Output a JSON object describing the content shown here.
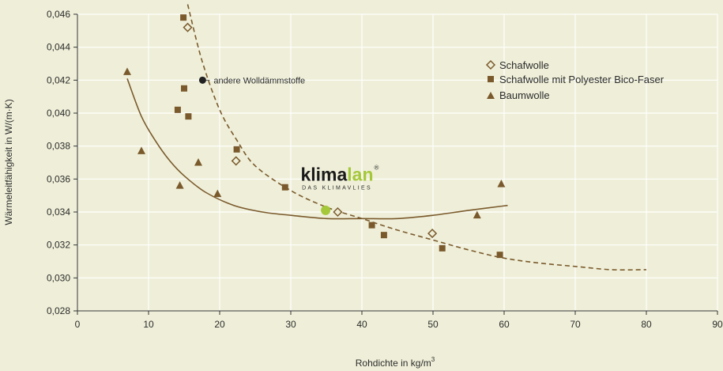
{
  "chart_data": {
    "type": "scatter",
    "title": "",
    "xlabel": "Rohdichte in kg/m",
    "xlabel_superscript": "3",
    "ylabel": "Wärmeleitfähigkeit in W/(m·K)",
    "xlim": [
      0,
      90
    ],
    "ylim": [
      0.028,
      0.046
    ],
    "x_ticks": [
      "0",
      "10",
      "20",
      "30",
      "40",
      "50",
      "60",
      "70",
      "80",
      "90"
    ],
    "y_ticks": [
      "0,028",
      "0,030",
      "0,032",
      "0,034",
      "0,036",
      "0,038",
      "0,040",
      "0,042",
      "0,044",
      "0,046"
    ],
    "grid": true,
    "legend_position": "top-right",
    "series": [
      {
        "name": "Schafwolle",
        "marker": "diamond-open",
        "color": "#7a5a2c",
        "points": [
          [
            15.5,
            0.0452
          ],
          [
            22.3,
            0.0371
          ],
          [
            36.6,
            0.034
          ],
          [
            49.9,
            0.0327
          ]
        ]
      },
      {
        "name": "Schafwolle mit Polyester Bico-Faser",
        "marker": "square",
        "color": "#7a5a2c",
        "points": [
          [
            14.9,
            0.0458
          ],
          [
            15.0,
            0.0415
          ],
          [
            14.1,
            0.0402
          ],
          [
            15.6,
            0.0398
          ],
          [
            22.4,
            0.0378
          ],
          [
            29.2,
            0.0355
          ],
          [
            41.4,
            0.0332
          ],
          [
            43.1,
            0.0326
          ],
          [
            51.3,
            0.0318
          ],
          [
            59.4,
            0.0314
          ]
        ]
      },
      {
        "name": "Baumwolle",
        "marker": "triangle",
        "color": "#7a5a2c",
        "points": [
          [
            7.0,
            0.0425
          ],
          [
            9.0,
            0.0377
          ],
          [
            14.4,
            0.0356
          ],
          [
            17.0,
            0.037
          ],
          [
            19.7,
            0.0351
          ],
          [
            56.2,
            0.0338
          ],
          [
            59.6,
            0.0357
          ]
        ]
      }
    ],
    "trend_lines": [
      {
        "for": "Schafwolle mit Polyester Bico-Faser",
        "style": "dashed",
        "color": "#7a5a2c",
        "points": [
          [
            15.5,
            0.0466
          ],
          [
            17.5,
            0.0432
          ],
          [
            20.0,
            0.0402
          ],
          [
            22.5,
            0.0383
          ],
          [
            25.0,
            0.0368
          ],
          [
            30.0,
            0.0353
          ],
          [
            35.0,
            0.0343
          ],
          [
            40.0,
            0.0336
          ],
          [
            45.0,
            0.0329
          ],
          [
            50.0,
            0.0323
          ],
          [
            55.0,
            0.0317
          ],
          [
            60.0,
            0.0312
          ],
          [
            65.0,
            0.0309
          ],
          [
            70.0,
            0.0307
          ],
          [
            75.0,
            0.0305
          ],
          [
            80.0,
            0.0305
          ]
        ]
      },
      {
        "for": "Baumwolle",
        "style": "solid",
        "color": "#7a5a2c",
        "points": [
          [
            7.0,
            0.0421
          ],
          [
            9.0,
            0.0398
          ],
          [
            11.0,
            0.0383
          ],
          [
            13.0,
            0.0371
          ],
          [
            15.0,
            0.0362
          ],
          [
            18.0,
            0.0352
          ],
          [
            22.0,
            0.0344
          ],
          [
            26.0,
            0.034
          ],
          [
            30.0,
            0.0338
          ],
          [
            35.0,
            0.0336
          ],
          [
            40.0,
            0.0336
          ],
          [
            45.0,
            0.0336
          ],
          [
            50.0,
            0.0338
          ],
          [
            55.0,
            0.0341
          ],
          [
            60.5,
            0.0344
          ]
        ]
      }
    ],
    "annotations": [
      {
        "label": "andere Wolldämmstoffe",
        "point": [
          17.6,
          0.042
        ],
        "marker_color": "#222222"
      },
      {
        "label": "",
        "point": [
          34.9,
          0.0341
        ],
        "marker_color": "#a5c83a"
      }
    ],
    "logo": {
      "text_dark": "klima",
      "text_green": "lan",
      "registered": "®",
      "subtitle": "DAS KLIMAVLIES",
      "position": [
        36.5,
        0.0359
      ]
    }
  }
}
